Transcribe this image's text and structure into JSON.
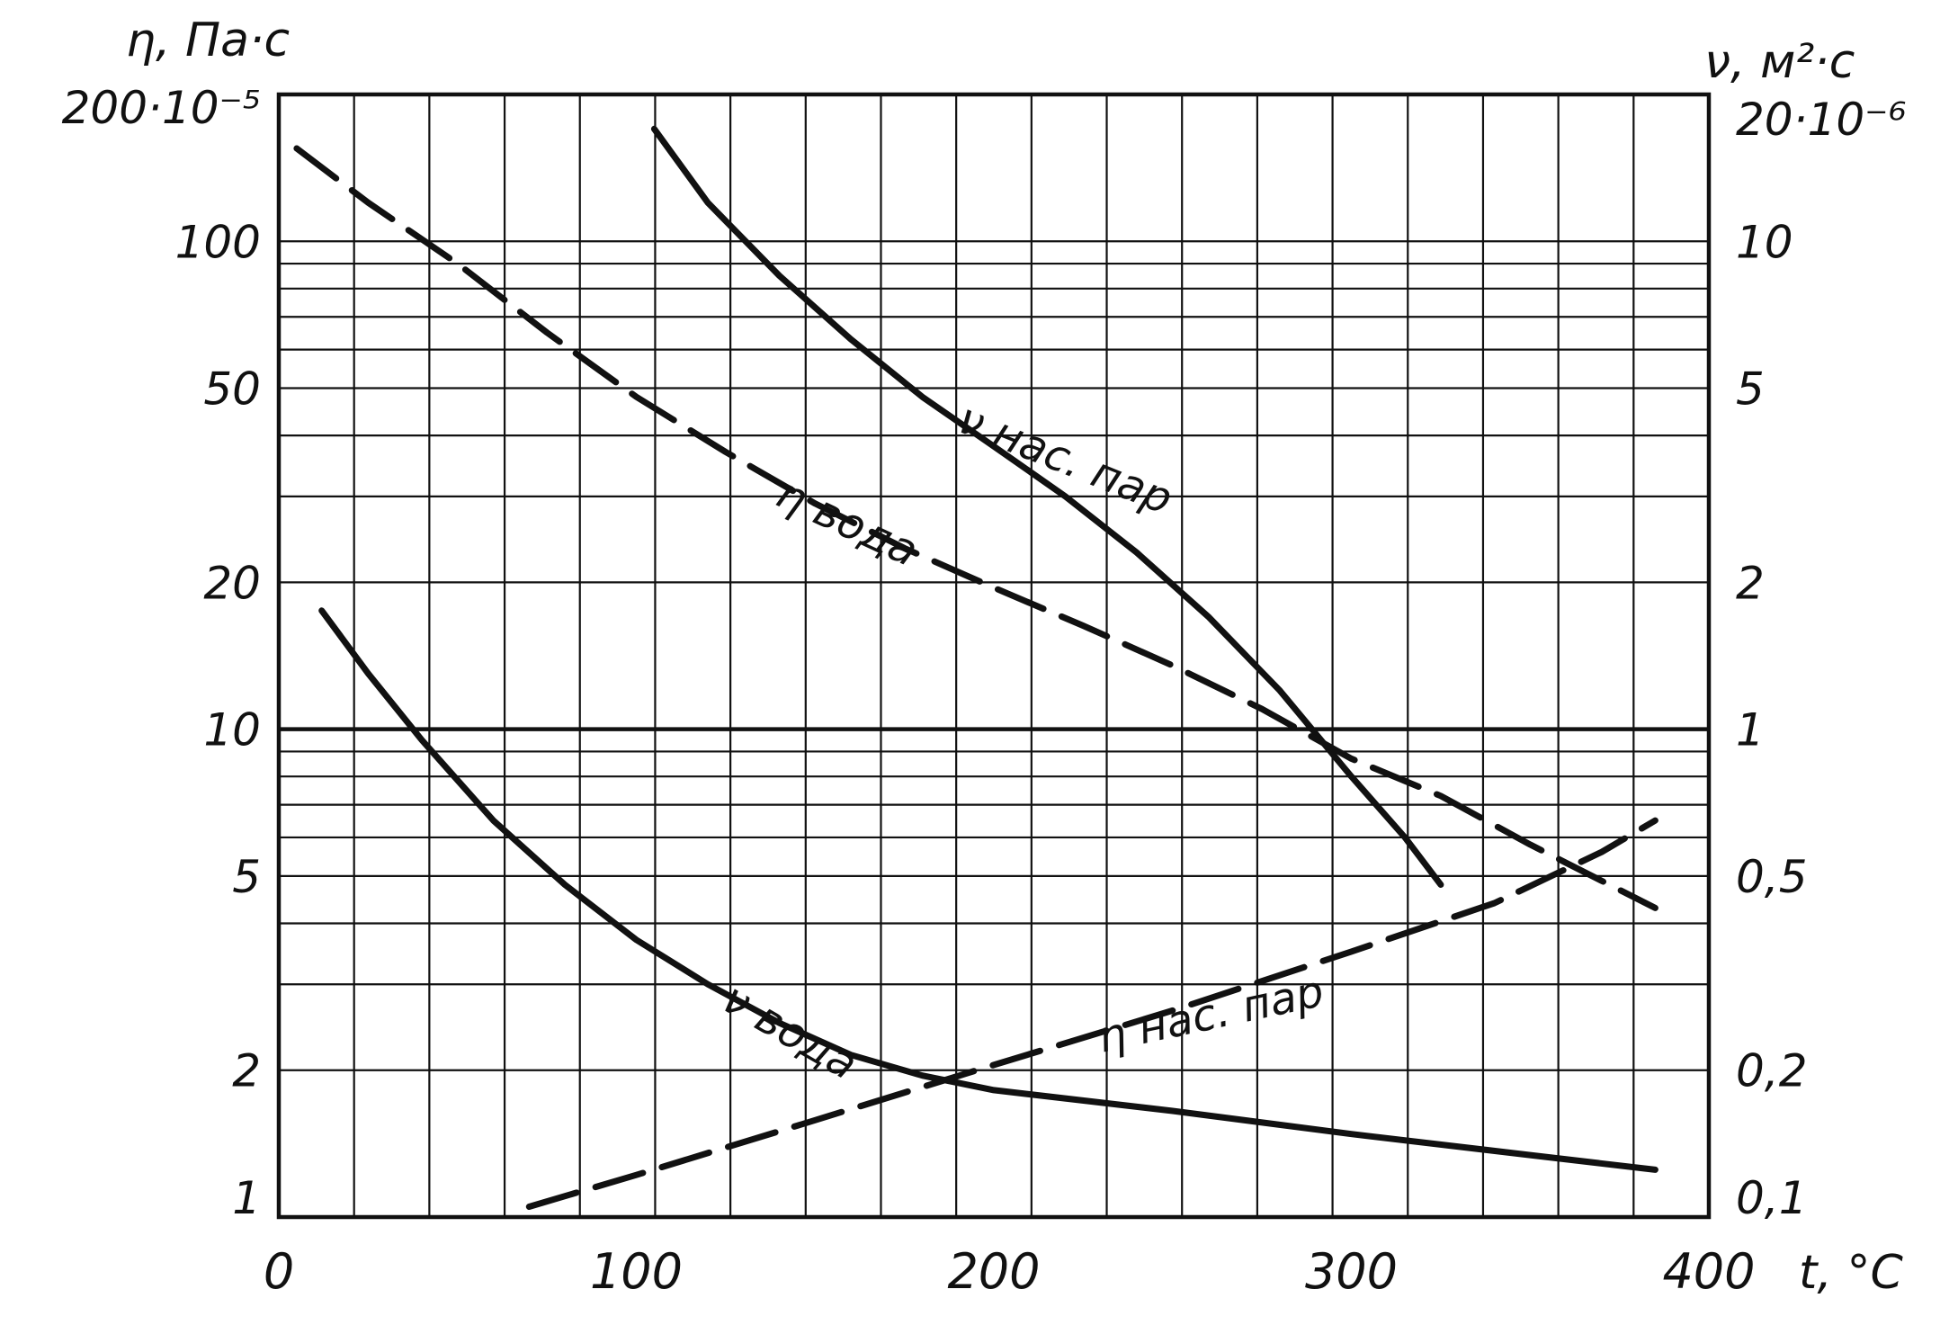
{
  "chart_data": {
    "type": "line",
    "x_axis": {
      "label": "t, °C",
      "range": [
        0,
        400
      ],
      "ticks": [
        "0",
        "100",
        "200",
        "300",
        "400"
      ],
      "tick_values": [
        0,
        100,
        200,
        300,
        400
      ]
    },
    "left_axis": {
      "label": "η, Па·с",
      "scale": "log",
      "range": [
        1,
        200
      ],
      "ticks": [
        {
          "value": 200,
          "label": "200·10⁻⁵"
        },
        {
          "value": 100,
          "label": "100"
        },
        {
          "value": 50,
          "label": "50"
        },
        {
          "value": 20,
          "label": "20"
        },
        {
          "value": 10,
          "label": "10"
        },
        {
          "value": 5,
          "label": "5"
        },
        {
          "value": 2,
          "label": "2"
        },
        {
          "value": 1,
          "label": "1"
        }
      ]
    },
    "right_axis": {
      "label": "ν, м²·с",
      "scale": "log",
      "range": [
        0.1,
        20
      ],
      "ticks": [
        {
          "value": 20,
          "label": "20·10⁻⁶"
        },
        {
          "value": 10,
          "label": "10"
        },
        {
          "value": 5,
          "label": "5"
        },
        {
          "value": 2,
          "label": "2"
        },
        {
          "value": 1,
          "label": "1"
        },
        {
          "value": 0.5,
          "label": "0,5"
        },
        {
          "value": 0.2,
          "label": "0,2"
        },
        {
          "value": 0.1,
          "label": "0,1"
        }
      ]
    },
    "grid": true,
    "series": [
      {
        "name": "ν нас. пар",
        "axis": "right",
        "style": "solid",
        "x": [
          105,
          120,
          140,
          160,
          180,
          200,
          220,
          240,
          260,
          280,
          300,
          315,
          325
        ],
        "y": [
          17,
          12,
          8.5,
          6.3,
          4.8,
          3.8,
          3.0,
          2.3,
          1.7,
          1.2,
          0.8,
          0.6,
          0.48
        ]
      },
      {
        "name": "η вода",
        "axis": "left",
        "style": "dashed",
        "x": [
          5,
          25,
          50,
          75,
          100,
          125,
          150,
          175,
          200,
          225,
          250,
          275,
          300,
          325,
          350,
          385
        ],
        "y": [
          155,
          120,
          90,
          65,
          48,
          37,
          29,
          23.5,
          19.5,
          16.3,
          13.5,
          11,
          8.7,
          7.3,
          5.8,
          4.3
        ]
      },
      {
        "name": "ν вода",
        "axis": "right",
        "style": "solid",
        "x": [
          12,
          25,
          40,
          60,
          80,
          100,
          120,
          140,
          160,
          180,
          200,
          250,
          300,
          350,
          385
        ],
        "y": [
          1.75,
          1.3,
          0.95,
          0.65,
          0.48,
          0.37,
          0.3,
          0.25,
          0.215,
          0.195,
          0.182,
          0.165,
          0.148,
          0.134,
          0.125
        ]
      },
      {
        "name": "η нас. пар",
        "axis": "left",
        "style": "dashed",
        "x": [
          70,
          100,
          150,
          200,
          250,
          300,
          340,
          370,
          385
        ],
        "y": [
          1.05,
          1.22,
          1.58,
          2.05,
          2.65,
          3.5,
          4.4,
          5.6,
          6.5
        ]
      }
    ]
  }
}
